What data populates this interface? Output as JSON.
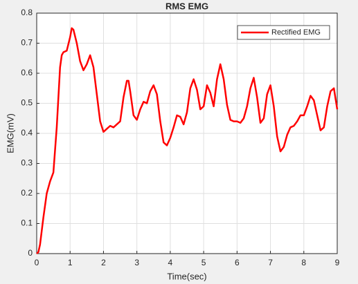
{
  "chart_data": {
    "type": "line",
    "title": "RMS EMG",
    "x_label": "Time(sec)",
    "y_label": "EMG(mV)",
    "x": [
      0,
      0.05,
      0.1,
      0.2,
      0.3,
      0.4,
      0.5,
      0.6,
      0.7,
      0.75,
      0.8,
      0.9,
      1.0,
      1.05,
      1.1,
      1.2,
      1.3,
      1.4,
      1.5,
      1.6,
      1.7,
      1.8,
      1.9,
      2.0,
      2.1,
      2.2,
      2.3,
      2.4,
      2.5,
      2.6,
      2.7,
      2.75,
      2.8,
      2.9,
      3.0,
      3.1,
      3.2,
      3.3,
      3.4,
      3.5,
      3.6,
      3.7,
      3.8,
      3.9,
      4.0,
      4.1,
      4.2,
      4.3,
      4.4,
      4.5,
      4.6,
      4.7,
      4.8,
      4.9,
      5.0,
      5.1,
      5.2,
      5.3,
      5.4,
      5.5,
      5.6,
      5.7,
      5.8,
      5.9,
      6.0,
      6.1,
      6.2,
      6.3,
      6.4,
      6.5,
      6.6,
      6.7,
      6.8,
      6.9,
      7.0,
      7.1,
      7.2,
      7.3,
      7.4,
      7.5,
      7.6,
      7.7,
      7.8,
      7.9,
      8.0,
      8.1,
      8.2,
      8.3,
      8.4,
      8.5,
      8.6,
      8.7,
      8.8,
      8.9,
      9.0
    ],
    "series": [
      {
        "name": "Rectified EMG",
        "color": "#ff0000",
        "values": [
          0,
          0.005,
          0.03,
          0.12,
          0.2,
          0.24,
          0.27,
          0.42,
          0.62,
          0.66,
          0.67,
          0.675,
          0.72,
          0.75,
          0.745,
          0.7,
          0.64,
          0.61,
          0.63,
          0.66,
          0.62,
          0.53,
          0.44,
          0.405,
          0.415,
          0.425,
          0.42,
          0.43,
          0.44,
          0.52,
          0.575,
          0.575,
          0.54,
          0.46,
          0.445,
          0.48,
          0.505,
          0.5,
          0.54,
          0.56,
          0.53,
          0.44,
          0.37,
          0.36,
          0.385,
          0.42,
          0.46,
          0.455,
          0.43,
          0.47,
          0.55,
          0.58,
          0.545,
          0.48,
          0.49,
          0.56,
          0.535,
          0.49,
          0.58,
          0.63,
          0.58,
          0.495,
          0.445,
          0.44,
          0.44,
          0.435,
          0.45,
          0.49,
          0.55,
          0.585,
          0.52,
          0.435,
          0.45,
          0.53,
          0.56,
          0.49,
          0.39,
          0.34,
          0.355,
          0.395,
          0.42,
          0.425,
          0.44,
          0.46,
          0.46,
          0.49,
          0.525,
          0.51,
          0.46,
          0.41,
          0.42,
          0.49,
          0.54,
          0.55,
          0.48
        ]
      }
    ],
    "xlim": [
      0,
      9
    ],
    "ylim": [
      0,
      0.8
    ],
    "xticks": [
      0,
      1,
      2,
      3,
      4,
      5,
      6,
      7,
      8,
      9
    ],
    "yticks": [
      0,
      0.1,
      0.2,
      0.3,
      0.4,
      0.5,
      0.6,
      0.7,
      0.8
    ],
    "grid": true,
    "legend": "top-right"
  }
}
